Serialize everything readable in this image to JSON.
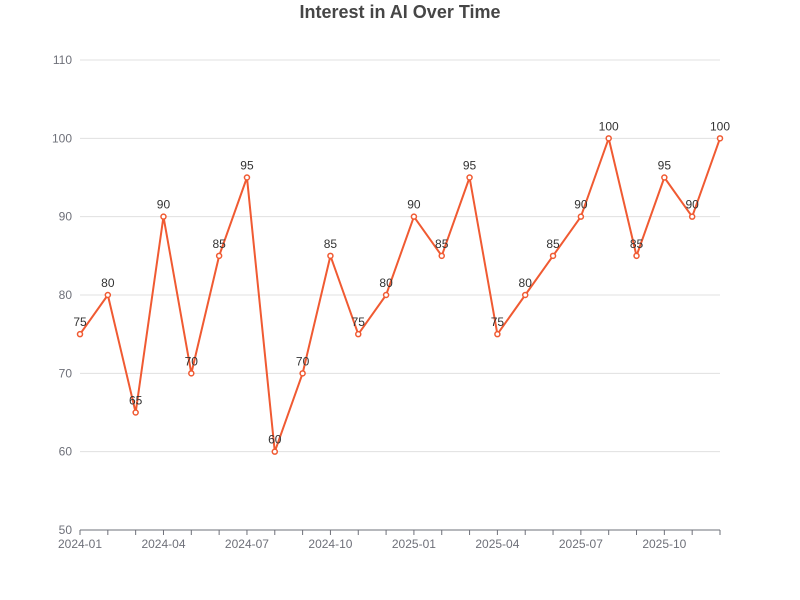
{
  "chart_data": {
    "type": "line",
    "title": "Interest in AI Over Time",
    "xlabel": "",
    "ylabel": "",
    "x": [
      "2024-01",
      "2024-02",
      "2024-03",
      "2024-04",
      "2024-05",
      "2024-06",
      "2024-07",
      "2024-08",
      "2024-09",
      "2024-10",
      "2024-11",
      "2024-12",
      "2025-01",
      "2025-02",
      "2025-03",
      "2025-04",
      "2025-05",
      "2025-06",
      "2025-07",
      "2025-08",
      "2025-09",
      "2025-10",
      "2025-11",
      "2025-12"
    ],
    "series": [
      {
        "values": [
          75,
          80,
          65,
          90,
          70,
          85,
          95,
          60,
          70,
          85,
          75,
          80,
          90,
          85,
          95,
          75,
          80,
          85,
          90,
          100,
          85,
          95,
          90,
          100
        ]
      }
    ],
    "x_ticks": [
      "2024-01",
      "2024-04",
      "2024-07",
      "2024-10",
      "2025-01",
      "2025-04",
      "2025-07",
      "2025-10"
    ],
    "ylim": [
      50,
      110
    ],
    "y_ticks": [
      50,
      60,
      70,
      80,
      90,
      100,
      110
    ],
    "grid": true,
    "legend": "none",
    "data_labels": true,
    "colors": {
      "line": "#f05a32",
      "grid": "#e0e0e0",
      "axis": "#6e7079"
    }
  }
}
